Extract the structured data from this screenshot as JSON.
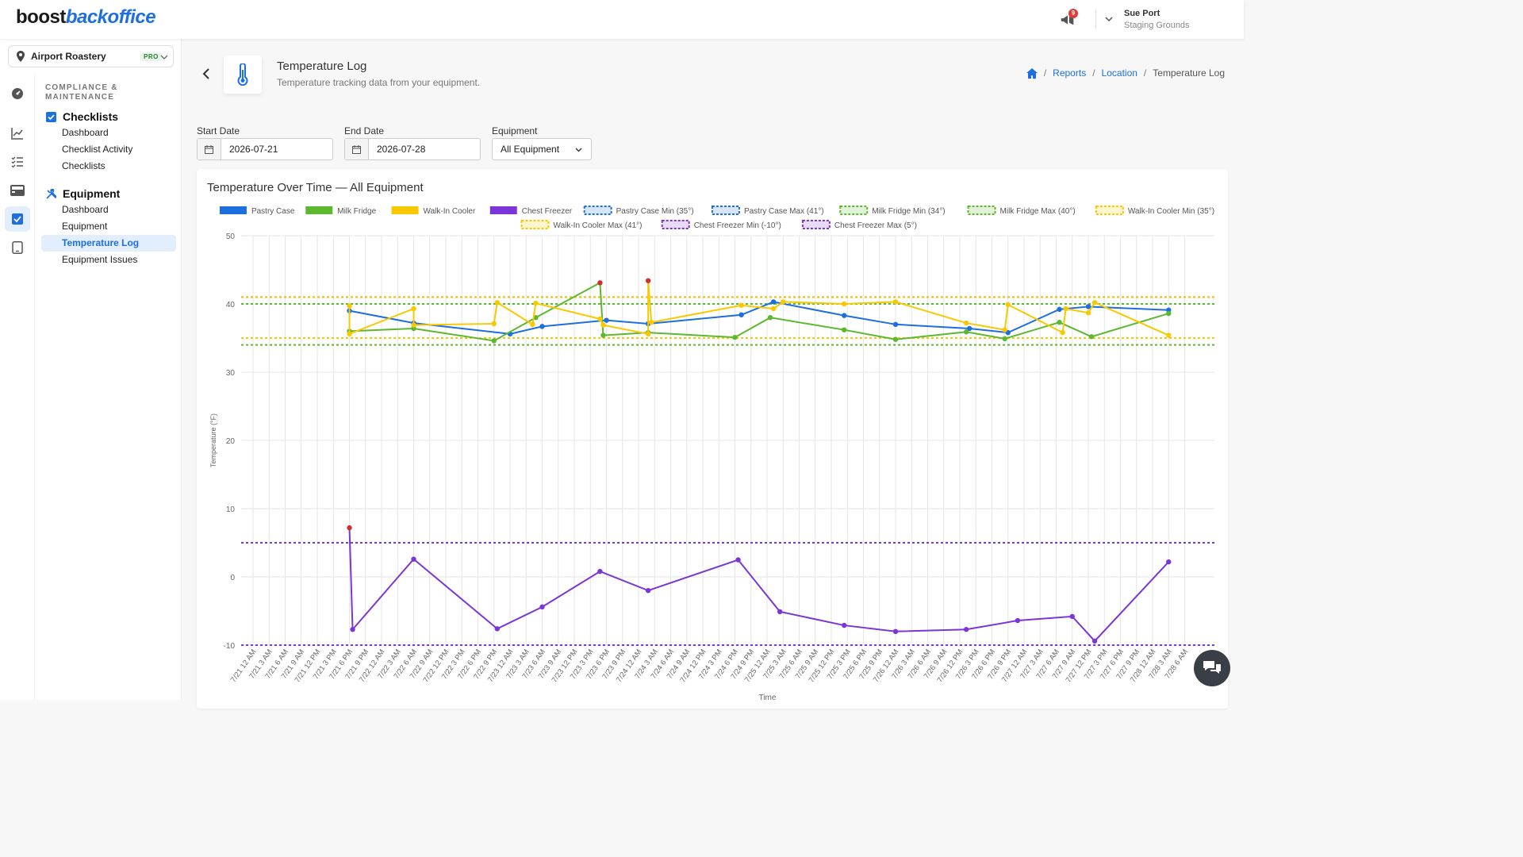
{
  "app": {
    "logo_part1": "boost",
    "logo_part2": "backoffice",
    "notifications_count": "9",
    "user_name": "Sue Port",
    "user_org": "Staging Grounds"
  },
  "sidebar": {
    "location_name": "Airport Roastery",
    "location_badge": "PRO",
    "section_heading": "COMPLIANCE & MAINTENANCE",
    "groups": [
      {
        "label": "Checklists",
        "items": [
          "Dashboard",
          "Checklist Activity",
          "Checklists"
        ]
      },
      {
        "label": "Equipment",
        "items": [
          "Dashboard",
          "Equipment",
          "Temperature Log",
          "Equipment Issues"
        ]
      }
    ],
    "active_item": "Temperature Log"
  },
  "header": {
    "title": "Temperature Log",
    "subtitle": "Temperature tracking data from your equipment.",
    "breadcrumb": [
      "Reports",
      "Location",
      "Temperature Log"
    ]
  },
  "filters": {
    "start_label": "Start Date",
    "start_value": "2026-07-21",
    "end_label": "End Date",
    "end_value": "2026-07-28",
    "equipment_label": "Equipment",
    "equipment_value": "All Equipment"
  },
  "colors": {
    "pastry": "#1d6fe0",
    "milk": "#5cb82e",
    "walkin": "#f8c800",
    "freezer": "#7b35d8",
    "alert": "#d32f2f"
  },
  "chart_data": {
    "type": "line",
    "title": "Temperature Over Time — All Equipment",
    "xlabel": "Time",
    "ylabel": "Temperature (°F)",
    "ylim": [
      -10,
      50
    ],
    "yticks": [
      -10,
      0,
      10,
      20,
      30,
      40,
      50
    ],
    "grid": true,
    "legend_position": "top",
    "x_categories": [
      "7/21 12 AM",
      "7/21 3 AM",
      "7/21 6 AM",
      "7/21 9 AM",
      "7/21 12 PM",
      "7/21 3 PM",
      "7/21 6 PM",
      "7/21 9 PM",
      "7/22 12 AM",
      "7/22 3 AM",
      "7/22 6 AM",
      "7/22 9 AM",
      "7/22 12 PM",
      "7/22 3 PM",
      "7/22 6 PM",
      "7/22 9 PM",
      "7/23 12 AM",
      "7/23 3 AM",
      "7/23 6 AM",
      "7/23 9 AM",
      "7/23 12 PM",
      "7/23 3 PM",
      "7/23 6 PM",
      "7/23 9 PM",
      "7/24 12 AM",
      "7/24 3 AM",
      "7/24 6 AM",
      "7/24 9 AM",
      "7/24 12 PM",
      "7/24 3 PM",
      "7/24 6 PM",
      "7/24 9 PM",
      "7/25 12 AM",
      "7/25 3 AM",
      "7/25 6 AM",
      "7/25 9 AM",
      "7/25 12 PM",
      "7/25 3 PM",
      "7/25 6 PM",
      "7/25 9 PM",
      "7/26 12 AM",
      "7/26 3 AM",
      "7/26 6 AM",
      "7/26 9 AM",
      "7/26 12 PM",
      "7/26 3 PM",
      "7/26 6 PM",
      "7/26 9 PM",
      "7/27 12 AM",
      "7/27 3 AM",
      "7/27 6 AM",
      "7/27 9 AM",
      "7/27 12 PM",
      "7/27 3 PM",
      "7/27 6 PM",
      "7/27 9 PM",
      "7/28 12 AM",
      "7/28 3 AM",
      "7/28 6 AM"
    ],
    "x_unit_note": "x values are category indices (3-hour steps starting 7/21 12 AM)",
    "series": [
      {
        "name": "Pastry Case",
        "color": "#1d6fe0",
        "points": [
          [
            3.0,
            39.0
          ],
          [
            5.0,
            37.2
          ],
          [
            8.0,
            35.6
          ],
          [
            9.0,
            36.7
          ],
          [
            11.0,
            37.6
          ],
          [
            12.3,
            37.1
          ],
          [
            15.2,
            38.4
          ],
          [
            16.2,
            40.3
          ],
          [
            18.4,
            38.3
          ],
          [
            20.0,
            37.0
          ],
          [
            22.3,
            36.4
          ],
          [
            23.5,
            35.8
          ],
          [
            25.1,
            39.2
          ],
          [
            26.0,
            39.6
          ],
          [
            28.5,
            39.1
          ]
        ],
        "alerts": []
      },
      {
        "name": "Milk Fridge",
        "color": "#5cb82e",
        "points": [
          [
            3.0,
            36.0
          ],
          [
            5.0,
            36.4
          ],
          [
            7.5,
            34.6
          ],
          [
            8.8,
            38.0
          ],
          [
            10.8,
            43.1
          ],
          [
            10.9,
            35.4
          ],
          [
            12.3,
            35.8
          ],
          [
            15.0,
            35.1
          ],
          [
            16.1,
            38.0
          ],
          [
            18.4,
            36.2
          ],
          [
            20.0,
            34.8
          ],
          [
            22.2,
            35.9
          ],
          [
            23.4,
            34.9
          ],
          [
            25.1,
            37.3
          ],
          [
            26.1,
            35.2
          ],
          [
            28.5,
            38.6
          ]
        ],
        "alerts": [
          [
            10.8,
            43.1
          ]
        ]
      },
      {
        "name": "Walk-In Cooler",
        "color": "#f8c800",
        "points": [
          [
            3.0,
            39.7
          ],
          [
            3.0,
            35.6
          ],
          [
            5.0,
            39.3
          ],
          [
            5.0,
            36.9
          ],
          [
            7.5,
            37.1
          ],
          [
            7.6,
            40.2
          ],
          [
            8.7,
            37.0
          ],
          [
            8.8,
            40.1
          ],
          [
            10.8,
            37.8
          ],
          [
            10.9,
            36.9
          ],
          [
            12.3,
            35.6
          ],
          [
            12.3,
            43.4
          ],
          [
            12.4,
            37.3
          ],
          [
            15.2,
            39.8
          ],
          [
            16.2,
            39.3
          ],
          [
            16.5,
            40.3
          ],
          [
            18.4,
            40.0
          ],
          [
            20.0,
            40.3
          ],
          [
            22.2,
            37.2
          ],
          [
            23.4,
            36.2
          ],
          [
            23.5,
            39.9
          ],
          [
            25.2,
            35.8
          ],
          [
            25.3,
            39.3
          ],
          [
            26.0,
            38.7
          ],
          [
            26.2,
            40.2
          ],
          [
            28.5,
            35.4
          ]
        ],
        "alerts": [
          [
            12.3,
            43.4
          ]
        ]
      },
      {
        "name": "Chest Freezer",
        "color": "#7b35d8",
        "points": [
          [
            3.0,
            7.2
          ],
          [
            3.1,
            -7.7
          ],
          [
            5.0,
            2.6
          ],
          [
            7.6,
            -7.6
          ],
          [
            9.0,
            -4.4
          ],
          [
            10.8,
            0.8
          ],
          [
            12.3,
            -2.0
          ],
          [
            15.1,
            2.5
          ],
          [
            16.4,
            -5.1
          ],
          [
            18.4,
            -7.1
          ],
          [
            20.0,
            -8.0
          ],
          [
            22.2,
            -7.7
          ],
          [
            23.8,
            -6.4
          ],
          [
            25.5,
            -5.8
          ],
          [
            26.2,
            -9.4
          ],
          [
            28.5,
            2.2
          ]
        ],
        "alerts": [
          [
            3.0,
            7.2
          ]
        ]
      }
    ],
    "thresholds": [
      {
        "name": "Pastry Case Min (35°)",
        "value": 35,
        "color": "#1d6fe0"
      },
      {
        "name": "Pastry Case Max (41°)",
        "value": 41,
        "color": "#1d6fe0"
      },
      {
        "name": "Milk Fridge Min (34°)",
        "value": 34,
        "color": "#5cb82e"
      },
      {
        "name": "Milk Fridge Max (40°)",
        "value": 40,
        "color": "#5cb82e"
      },
      {
        "name": "Walk-In Cooler Min (35°)",
        "value": 35,
        "color": "#f8c800"
      },
      {
        "name": "Walk-In Cooler Max (41°)",
        "value": 41,
        "color": "#f8c800"
      },
      {
        "name": "Chest Freezer Min (-10°)",
        "value": -10,
        "color": "#7b35d8"
      },
      {
        "name": "Chest Freezer Max (5°)",
        "value": 5,
        "color": "#7b35d8"
      }
    ]
  }
}
